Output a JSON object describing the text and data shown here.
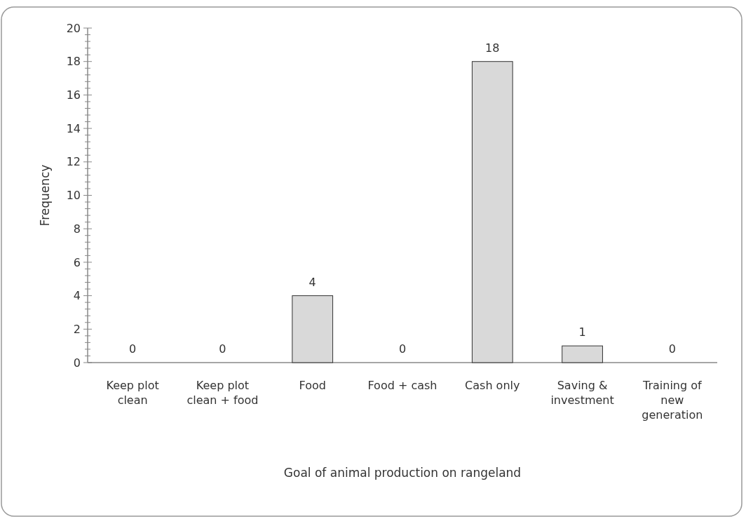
{
  "chart_data": {
    "type": "bar",
    "xlabel": "Goal of animal production on rangeland",
    "ylabel": "Frequency",
    "categories": [
      "Keep plot clean",
      "Keep plot clean + food",
      "Food",
      "Food + cash",
      "Cash only",
      "Saving & investment",
      "Training of new generation"
    ],
    "values": [
      0,
      0,
      4,
      0,
      18,
      1,
      0
    ],
    "color": "#d9d9d9",
    "ylim": [
      0,
      20
    ],
    "yticks": [
      0,
      {
        "value": 0.4,
        "label": null
      },
      {
        "value": 0.8,
        "label": null
      },
      {
        "value": 1.2,
        "label": null
      },
      {
        "value": 1.6,
        "label": null
      },
      2,
      {
        "value": 2.4,
        "label": null
      },
      {
        "value": 2.8,
        "label": null
      },
      {
        "value": 3.2,
        "label": null
      },
      {
        "value": 3.6,
        "label": null
      },
      4,
      {
        "value": 4.4,
        "label": null
      },
      {
        "value": 4.8,
        "label": null
      },
      {
        "value": 5.2,
        "label": null
      },
      {
        "value": 5.6,
        "label": null
      },
      6,
      {
        "value": 6.4,
        "label": null
      },
      {
        "value": 6.8,
        "label": null
      },
      {
        "value": 7.2,
        "label": null
      },
      {
        "value": 7.6,
        "label": null
      },
      8,
      {
        "value": 8.4,
        "label": null
      },
      {
        "value": 8.8,
        "label": null
      },
      {
        "value": 9.2,
        "label": null
      },
      {
        "value": 9.6,
        "label": null
      },
      10,
      {
        "value": 10.4,
        "label": null
      },
      {
        "value": 10.8,
        "label": null
      },
      {
        "value": 11.2,
        "label": null
      },
      {
        "value": 11.6,
        "label": null
      },
      12,
      {
        "value": 12.4,
        "label": null
      },
      {
        "value": 12.8,
        "label": null
      },
      {
        "value": 13.2,
        "label": null
      },
      {
        "value": 13.6,
        "label": null
      },
      14,
      {
        "value": 14.4,
        "label": null
      },
      {
        "value": 14.8,
        "label": null
      },
      {
        "value": 15.2,
        "label": null
      },
      {
        "value": 15.6,
        "label": null
      },
      16,
      {
        "value": 16.4,
        "label": null
      },
      {
        "value": 16.8,
        "label": null
      },
      {
        "value": 17.2,
        "label": null
      },
      {
        "value": 17.6,
        "label": null
      },
      18,
      {
        "value": 18.4,
        "label": null
      },
      {
        "value": 18.8,
        "label": null
      },
      {
        "value": 19.2,
        "label": null
      },
      {
        "value": 19.6,
        "label": null
      },
      20
    ],
    "data_labels": true,
    "grid": false
  }
}
